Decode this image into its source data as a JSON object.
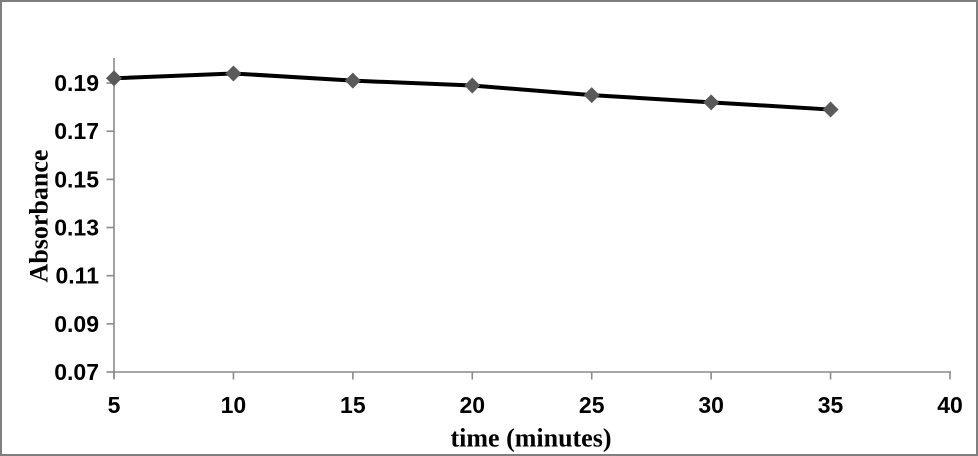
{
  "chart_data": {
    "type": "line",
    "title": "",
    "xlabel": "time (minutes)",
    "ylabel": "Absorbance",
    "x": [
      5,
      10,
      15,
      20,
      25,
      30,
      35
    ],
    "series": [
      {
        "name": "Absorbance",
        "values": [
          0.192,
          0.194,
          0.191,
          0.189,
          0.185,
          0.182,
          0.179
        ]
      }
    ],
    "xlim": [
      5,
      40
    ],
    "ylim": [
      0.07,
      0.2
    ],
    "x_ticks": [
      5,
      10,
      15,
      20,
      25,
      30,
      35,
      40
    ],
    "x_tick_labels": [
      "5",
      "10",
      "15",
      "20",
      "25",
      "30",
      "35",
      "40"
    ],
    "y_ticks": [
      0.07,
      0.09,
      0.11,
      0.13,
      0.15,
      0.17,
      0.19
    ],
    "y_tick_labels": [
      "0.07",
      "0.09",
      "0.11",
      "0.13",
      "0.15",
      "0.17",
      "0.19"
    ],
    "grid": false,
    "legend": false,
    "marker": "diamond",
    "colors": {
      "line": "#000000",
      "marker": "#5a5a5a",
      "axis": "#8a8a8a",
      "text": "#000000",
      "frame_border": "#7f7f7f",
      "background": "#ffffff"
    }
  }
}
